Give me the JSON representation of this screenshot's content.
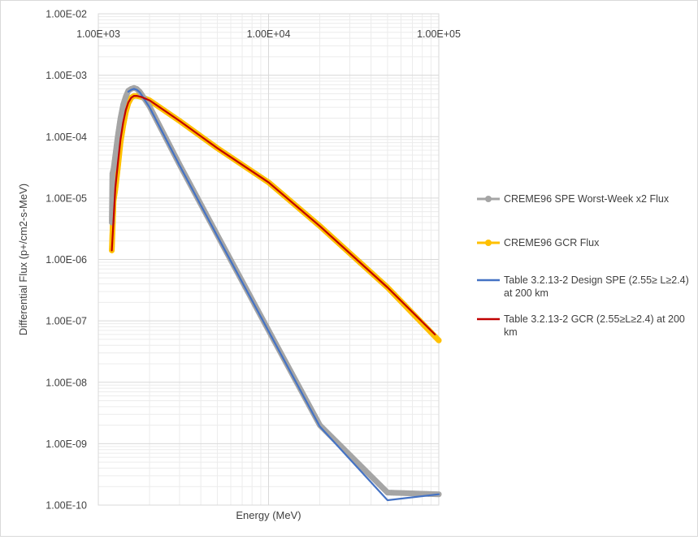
{
  "chart_data": {
    "type": "line",
    "title": "",
    "xlabel": "Energy (MeV)",
    "ylabel": "Differential Flux (p+/cm2-s-MeV)",
    "x_scale": "log",
    "y_scale": "log",
    "xlim": [
      1000,
      100000
    ],
    "ylim": [
      1e-10,
      0.01
    ],
    "grid": true,
    "legend_placement": "right",
    "x_tick_labels": [
      "1.00E+03",
      "1.00E+04",
      "1.00E+05"
    ],
    "x_tick_position": "top",
    "y_tick_labels": [
      "1.00E-10",
      "1.00E-09",
      "1.00E-08",
      "1.00E-07",
      "1.00E-06",
      "1.00E-05",
      "1.00E-04",
      "1.00E-03",
      "1.00E-02"
    ],
    "series": [
      {
        "name": "CREME96 SPE Worst-Week x2 Flux",
        "color": "#a5a5a5",
        "marker": "circle",
        "x": [
          1200,
          1210,
          1230,
          1260,
          1300,
          1350,
          1400,
          1450,
          1500,
          1560,
          1620,
          1680,
          1750,
          1800,
          2000,
          3000,
          5000,
          10000,
          20000,
          50000,
          100000
        ],
        "y": [
          4e-06,
          2.5e-05,
          3e-05,
          5e-05,
          0.0001,
          0.0002,
          0.00033,
          0.00045,
          0.00056,
          0.0006,
          0.00062,
          0.0006,
          0.00054,
          0.00048,
          0.00031,
          3.5e-05,
          2.5e-06,
          7e-08,
          2e-09,
          1.6e-10,
          1.5e-10
        ]
      },
      {
        "name": "CREME96 GCR Flux",
        "color": "#ffc000",
        "marker": "circle",
        "x": [
          1200,
          1230,
          1260,
          1300,
          1350,
          1400,
          1450,
          1500,
          1560,
          1620,
          1680,
          1750,
          1800,
          2000,
          3000,
          5000,
          10000,
          20000,
          50000,
          100000
        ],
        "y": [
          1.4e-06,
          9e-06,
          1.4e-05,
          3e-05,
          8e-05,
          0.00015,
          0.00025,
          0.00035,
          0.00043,
          0.00046,
          0.00046,
          0.00045,
          0.00044,
          0.00039,
          0.00018,
          6.5e-05,
          1.8e-05,
          3.5e-06,
          3.5e-07,
          4.8e-08
        ]
      },
      {
        "name": "Table 3.2.13-2 Design SPE (2.55≥ L≥2.4) at 200 km",
        "color": "#4472c4",
        "marker": "none",
        "x": [
          1500,
          1560,
          1620,
          1680,
          1750,
          1800,
          2000,
          3000,
          5000,
          10000,
          20000,
          50000,
          100000
        ],
        "y": [
          0.00054,
          0.00058,
          0.0006,
          0.00058,
          0.00053,
          0.00047,
          0.0003,
          3.4e-05,
          2.4e-06,
          6.8e-08,
          1.9e-09,
          1.2e-10,
          1.5e-10
        ]
      },
      {
        "name": "Table 3.2.13-2  GCR (2.55≥L≥2.4) at 200 km",
        "color": "#c00000",
        "marker": "none",
        "x": [
          1200,
          1260,
          1300,
          1350,
          1400,
          1450,
          1500,
          1560,
          1620,
          1680,
          1750,
          1800,
          2000,
          3000,
          5000,
          10000,
          20000,
          50000,
          95000
        ],
        "y": [
          1.4e-06,
          1.5e-05,
          3.5e-05,
          9e-05,
          0.00017,
          0.00027,
          0.00036,
          0.00043,
          0.00046,
          0.00046,
          0.00045,
          0.00044,
          0.00039,
          0.00018,
          6.5e-05,
          1.8e-05,
          3.5e-06,
          3.5e-07,
          6e-08
        ]
      }
    ]
  }
}
